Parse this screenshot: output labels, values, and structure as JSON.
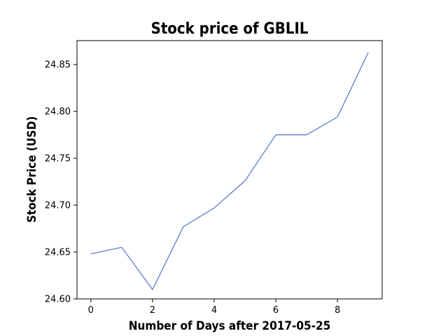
{
  "chart_data": {
    "type": "line",
    "title": "Stock price of GBLIL",
    "xlabel": "Number of Days after 2017-05-25",
    "ylabel": "Stock Price (USD)",
    "x": [
      0,
      1,
      2,
      3,
      4,
      5,
      6,
      7,
      8,
      9
    ],
    "series": [
      {
        "values": [
          24.648,
          24.655,
          24.61,
          24.677,
          24.697,
          24.726,
          24.775,
          24.775,
          24.794,
          24.863
        ],
        "color": "#4f72c7"
      }
    ],
    "xlim": [
      -0.45,
      9.45
    ],
    "ylim": [
      24.6,
      24.8755
    ],
    "xticks": [
      0,
      2,
      4,
      6,
      8
    ],
    "xtick_labels": [
      "0",
      "2",
      "4",
      "6",
      "8"
    ],
    "yticks": [
      24.6,
      24.65,
      24.7,
      24.75,
      24.8,
      24.85
    ],
    "ytick_labels": [
      "24.60",
      "24.65",
      "24.70",
      "24.75",
      "24.80",
      "24.85"
    ],
    "grid": false,
    "legend": "none"
  }
}
